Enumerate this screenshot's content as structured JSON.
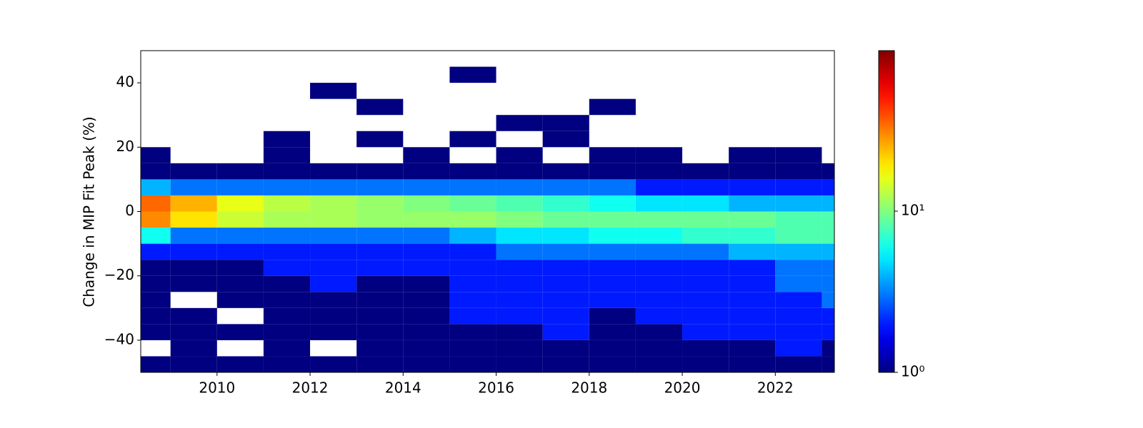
{
  "chart_data": {
    "type": "hist2d",
    "y_label": "Change in MIP Fit Peak (%)",
    "colormap": "jet",
    "log_color": true,
    "xlim": [
      2008.36,
      2023.27
    ],
    "ylim": [
      -50,
      50
    ],
    "xticks": [
      2010,
      2012,
      2014,
      2016,
      2018,
      2020,
      2022
    ],
    "yticks": [
      {
        "value": -40,
        "label": "−40"
      },
      {
        "value": -20,
        "label": "−20"
      },
      0,
      20,
      40
    ],
    "clim": [
      1,
      99
    ],
    "cticks": [
      {
        "value": 1,
        "label": "10⁰"
      },
      {
        "value": 10,
        "label": "10¹"
      }
    ],
    "xbins": [
      2008.36,
      2009,
      2010,
      2011,
      2012,
      2013,
      2014,
      2015,
      2016,
      2017,
      2018,
      2019,
      2020,
      2021,
      2022,
      2023,
      2023.27
    ],
    "ybins": [
      -50,
      -45,
      -40,
      -35,
      -30,
      -25,
      -20,
      -15,
      -10,
      -5,
      0,
      5,
      10,
      15,
      20,
      25,
      30,
      35,
      40,
      45,
      50
    ],
    "counts": [
      [
        1,
        1,
        1,
        1,
        1,
        1,
        1,
        1,
        1,
        1,
        1,
        1,
        1,
        1,
        1,
        1
      ],
      [
        null,
        1,
        null,
        1,
        null,
        1,
        1,
        1,
        1,
        1,
        1,
        1,
        1,
        1,
        2,
        1
      ],
      [
        1,
        1,
        1,
        1,
        1,
        1,
        1,
        1,
        1,
        2,
        1,
        1,
        2,
        2,
        2,
        2
      ],
      [
        1,
        1,
        null,
        1,
        1,
        1,
        1,
        2,
        2,
        2,
        1,
        2,
        2,
        2,
        2,
        2
      ],
      [
        1,
        null,
        1,
        1,
        1,
        1,
        1,
        2,
        2,
        2,
        2,
        2,
        2,
        2,
        2,
        3
      ],
      [
        1,
        1,
        1,
        1,
        2,
        1,
        1,
        2,
        2,
        2,
        2,
        2,
        2,
        2,
        3,
        3
      ],
      [
        1,
        1,
        1,
        2,
        2,
        2,
        2,
        2,
        2,
        2,
        2,
        2,
        2,
        2,
        3,
        3
      ],
      [
        2,
        2,
        2,
        2,
        2,
        2,
        2,
        2,
        3,
        3,
        3,
        3,
        3,
        4,
        4,
        4
      ],
      [
        6,
        3,
        3,
        3,
        3,
        3,
        3,
        4,
        5,
        5,
        6,
        6,
        7,
        7,
        8,
        8
      ],
      [
        30,
        20,
        14,
        12,
        12,
        11,
        11,
        11,
        10,
        9,
        9,
        9,
        9,
        9,
        8,
        8
      ],
      [
        35,
        25,
        16,
        13,
        12,
        11,
        10,
        9,
        8,
        7,
        6,
        5,
        5,
        4,
        4,
        4
      ],
      [
        4,
        3,
        3,
        3,
        3,
        3,
        3,
        3,
        3,
        3,
        3,
        2,
        2,
        2,
        2,
        2
      ],
      [
        1,
        1,
        1,
        1,
        1,
        1,
        1,
        1,
        1,
        1,
        1,
        1,
        1,
        1,
        1,
        1
      ],
      [
        1,
        null,
        null,
        1,
        null,
        null,
        1,
        null,
        1,
        null,
        1,
        1,
        null,
        1,
        1,
        null
      ],
      [
        null,
        null,
        null,
        1,
        null,
        1,
        null,
        1,
        null,
        1,
        null,
        null,
        null,
        null,
        null,
        null
      ],
      [
        null,
        null,
        null,
        null,
        null,
        null,
        null,
        null,
        1,
        1,
        null,
        null,
        null,
        null,
        null,
        null
      ],
      [
        null,
        null,
        null,
        null,
        null,
        1,
        null,
        null,
        null,
        null,
        1,
        null,
        null,
        null,
        null,
        null
      ],
      [
        null,
        null,
        null,
        null,
        1,
        null,
        null,
        null,
        null,
        null,
        null,
        null,
        null,
        null,
        null,
        null
      ],
      [
        null,
        null,
        null,
        null,
        null,
        null,
        null,
        1,
        null,
        null,
        null,
        null,
        null,
        null,
        null,
        null
      ],
      [
        null,
        null,
        null,
        null,
        null,
        null,
        null,
        null,
        null,
        null,
        null,
        null,
        null,
        null,
        null,
        null
      ]
    ]
  }
}
